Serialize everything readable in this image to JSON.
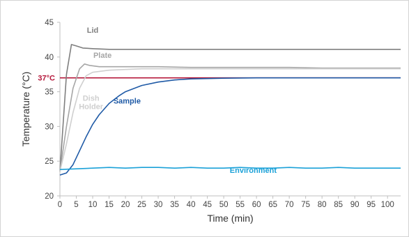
{
  "chart_data": {
    "type": "line",
    "xlabel": "Time (min)",
    "ylabel": "Temperature (°C)",
    "xlim": [
      0,
      104
    ],
    "ylim": [
      20,
      45
    ],
    "x_ticks": [
      0,
      5,
      10,
      15,
      20,
      25,
      30,
      35,
      40,
      45,
      50,
      55,
      60,
      65,
      70,
      75,
      80,
      85,
      90,
      95,
      100
    ],
    "y_ticks": [
      20,
      25,
      30,
      35,
      40,
      45
    ],
    "grid": false,
    "reference_line": {
      "label": "37°C",
      "y": 37,
      "color": "#b5173a"
    },
    "series": [
      {
        "name": "Lid",
        "color": "#7f7f7f",
        "x": [
          0,
          2,
          3.5,
          5,
          7,
          10,
          15,
          20,
          30,
          40,
          50,
          60,
          70,
          80,
          90,
          100,
          104
        ],
        "y": [
          23.5,
          37.5,
          41.8,
          41.6,
          41.3,
          41.2,
          41.1,
          41.1,
          41.1,
          41.1,
          41.1,
          41.1,
          41.1,
          41.1,
          41.1,
          41.1,
          41.1
        ]
      },
      {
        "name": "Plate",
        "color": "#a6a6a6",
        "x": [
          0,
          2,
          4,
          6,
          7.5,
          9,
          12,
          15,
          20,
          30,
          40,
          50,
          60,
          70,
          80,
          90,
          100,
          104
        ],
        "y": [
          23.5,
          30,
          35.5,
          38.3,
          39,
          38.8,
          38.6,
          38.6,
          38.6,
          38.6,
          38.5,
          38.5,
          38.5,
          38.5,
          38.4,
          38.4,
          38.4,
          38.4
        ]
      },
      {
        "name": "Dish Holder",
        "color": "#cfcfcf",
        "x": [
          0,
          2,
          4,
          6,
          8,
          10,
          15,
          20,
          25,
          30,
          40,
          50,
          60,
          70,
          80,
          90,
          100,
          104
        ],
        "y": [
          23.5,
          27.5,
          32,
          35.5,
          37.3,
          37.8,
          38.1,
          38.2,
          38.3,
          38.3,
          38.3,
          38.3,
          38.3,
          38.3,
          38.3,
          38.3,
          38.3,
          38.3
        ]
      },
      {
        "name": "Sample",
        "color": "#1f5aa6",
        "x": [
          0,
          2,
          4,
          6,
          8,
          10,
          12,
          15,
          18,
          20,
          25,
          30,
          35,
          40,
          45,
          50,
          60,
          70,
          80,
          90,
          100,
          104
        ],
        "y": [
          23,
          23.3,
          24.5,
          26.5,
          28.5,
          30.3,
          31.7,
          33.3,
          34.4,
          35,
          35.9,
          36.4,
          36.7,
          36.85,
          36.9,
          36.95,
          37,
          37,
          37,
          37,
          37,
          37
        ]
      },
      {
        "name": "Environment",
        "color": "#1ba1d8",
        "x": [
          0,
          5,
          10,
          15,
          20,
          25,
          30,
          35,
          40,
          45,
          50,
          55,
          60,
          65,
          70,
          75,
          80,
          85,
          90,
          95,
          100,
          104
        ],
        "y": [
          23.8,
          23.9,
          24,
          24.1,
          24,
          24.1,
          24.1,
          24,
          24.1,
          24,
          24,
          24.1,
          24,
          24,
          24.1,
          24,
          24,
          24.1,
          24,
          24,
          24,
          24
        ]
      }
    ]
  }
}
